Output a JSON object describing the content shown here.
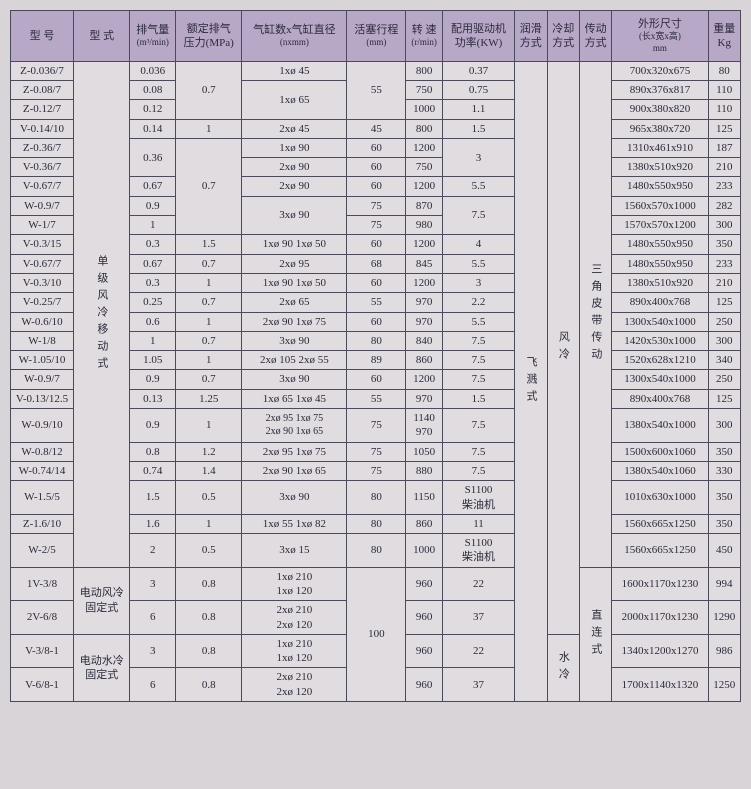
{
  "headers": {
    "c0": "型 号",
    "c1": "型 式",
    "c2": "排气量",
    "c2s": "(m³/min)",
    "c3": "额定排气\n压力(MPa)",
    "c4": "气缸数x气缸直径",
    "c4s": "(nxmm)",
    "c5": "活塞行程",
    "c5s": "(mm)",
    "c6": "转 速",
    "c6s": "(r/min)",
    "c7": "配用驱动机\n功率(KW)",
    "c8": "润滑\n方式",
    "c9": "冷却\n方式",
    "c10": "传动\n方式",
    "c11": "外形尺寸",
    "c11s": "(长x宽x高)\nmm",
    "c12": "重量\nKg"
  },
  "vtext": {
    "type1": "单级风冷移动式",
    "type2a": "电动风冷\n固定式",
    "type2b": "电动水冷\n固定式",
    "lube": "飞溅式",
    "cool1": "风冷",
    "cool2": "水冷",
    "drive1": "三角皮带传动",
    "drive2": "直连式"
  },
  "rows": [
    {
      "m": "Z-0.036/7",
      "q": "0.036",
      "p": "0.7",
      "cyl": "1xø 45",
      "st": "55",
      "rpm": "800",
      "kw": "0.37",
      "dim": "700x320x675",
      "kg": "80"
    },
    {
      "m": "Z-0.08/7",
      "q": "0.08",
      "cyl": "1xø 65",
      "rpm": "750",
      "kw": "0.75",
      "dim": "890x376x817",
      "kg": "110"
    },
    {
      "m": "Z-0.12/7",
      "q": "0.12",
      "rpm": "1000",
      "kw": "1.1",
      "dim": "900x380x820",
      "kg": "110"
    },
    {
      "m": "V-0.14/10",
      "q": "0.14",
      "p": "1",
      "cyl": "2xø 45",
      "st": "45",
      "rpm": "800",
      "kw": "1.5",
      "dim": "965x380x720",
      "kg": "125"
    },
    {
      "m": "Z-0.36/7",
      "q": "0.36",
      "p": "0.7",
      "cyl": "1xø 90",
      "st": "60",
      "rpm": "1200",
      "kw": "3",
      "dim": "1310x461x910",
      "kg": "187"
    },
    {
      "m": "V-0.36/7",
      "cyl": "2xø 90",
      "st": "60",
      "rpm": "750",
      "dim": "1380x510x920",
      "kg": "210"
    },
    {
      "m": "V-0.67/7",
      "q": "0.67",
      "cyl": "2xø 90",
      "st": "60",
      "rpm": "1200",
      "kw": "5.5",
      "dim": "1480x550x950",
      "kg": "233"
    },
    {
      "m": "W-0.9/7",
      "q": "0.9",
      "cyl": "3xø 90",
      "st": "75",
      "rpm": "870",
      "kw": "7.5",
      "dim": "1560x570x1000",
      "kg": "282"
    },
    {
      "m": "W-1/7",
      "q": "1",
      "st": "75",
      "rpm": "980",
      "dim": "1570x570x1200",
      "kg": "300"
    },
    {
      "m": "V-0.3/15",
      "q": "0.3",
      "p": "1.5",
      "cyl": "1xø 90 1xø 50",
      "st": "60",
      "rpm": "1200",
      "kw": "4",
      "dim": "1480x550x950",
      "kg": "350"
    },
    {
      "m": "V-0.67/7",
      "q": "0.67",
      "p": "0.7",
      "cyl": "2xø 95",
      "st": "68",
      "rpm": "845",
      "kw": "5.5",
      "dim": "1480x550x950",
      "kg": "233"
    },
    {
      "m": "V-0.3/10",
      "q": "0.3",
      "p": "1",
      "cyl": "1xø 90 1xø 50",
      "st": "60",
      "rpm": "1200",
      "kw": "3",
      "dim": "1380x510x920",
      "kg": "210"
    },
    {
      "m": "V-0.25/7",
      "q": "0.25",
      "p": "0.7",
      "cyl": "2xø 65",
      "st": "55",
      "rpm": "970",
      "kw": "2.2",
      "dim": "890x400x768",
      "kg": "125"
    },
    {
      "m": "W-0.6/10",
      "q": "0.6",
      "p": "1",
      "cyl": "2xø 90 1xø 75",
      "st": "60",
      "rpm": "970",
      "kw": "5.5",
      "dim": "1300x540x1000",
      "kg": "250"
    },
    {
      "m": "W-1/8",
      "q": "1",
      "p": "0.7",
      "cyl": "3xø 90",
      "st": "80",
      "rpm": "840",
      "kw": "7.5",
      "dim": "1420x530x1000",
      "kg": "300"
    },
    {
      "m": "W-1.05/10",
      "q": "1.05",
      "p": "1",
      "cyl": "2xø 105 2xø 55",
      "st": "89",
      "rpm": "860",
      "kw": "7.5",
      "dim": "1520x628x1210",
      "kg": "340"
    },
    {
      "m": "W-0.9/7",
      "q": "0.9",
      "p": "0.7",
      "cyl": "3xø 90",
      "st": "60",
      "rpm": "1200",
      "kw": "7.5",
      "dim": "1300x540x1000",
      "kg": "250"
    },
    {
      "m": "V-0.13/12.5",
      "q": "0.13",
      "p": "1.25",
      "cyl": "1xø 65 1xø 45",
      "st": "55",
      "rpm": "970",
      "kw": "1.5",
      "dim": "890x400x768",
      "kg": "125"
    },
    {
      "m": "W-0.9/10",
      "q": "0.9",
      "p": "1",
      "cyl": "2xø 95 1xø 75\n2xø 90 1xø 65",
      "st": "75",
      "rpm": "1140\n970",
      "kw": "7.5",
      "dim": "1380x540x1000",
      "kg": "300"
    },
    {
      "m": "W-0.8/12",
      "q": "0.8",
      "p": "1.2",
      "cyl": "2xø 95 1xø 75",
      "st": "75",
      "rpm": "1050",
      "kw": "7.5",
      "dim": "1500x600x1060",
      "kg": "350"
    },
    {
      "m": "W-0.74/14",
      "q": "0.74",
      "p": "1.4",
      "cyl": "2xø 90 1xø 65",
      "st": "75",
      "rpm": "880",
      "kw": "7.5",
      "dim": "1380x540x1060",
      "kg": "330"
    },
    {
      "m": "W-1.5/5",
      "q": "1.5",
      "p": "0.5",
      "cyl": "3xø 90",
      "st": "80",
      "rpm": "1150",
      "kw": "S1100\n柴油机",
      "dim": "1010x630x1000",
      "kg": "350"
    },
    {
      "m": "Z-1.6/10",
      "q": "1.6",
      "p": "1",
      "cyl": "1xø 55 1xø 82",
      "st": "80",
      "rpm": "860",
      "kw": "11",
      "dim": "1560x665x1250",
      "kg": "350"
    },
    {
      "m": "W-2/5",
      "q": "2",
      "p": "0.5",
      "cyl": "3xø 15",
      "st": "80",
      "rpm": "1000",
      "kw": "S1100\n柴油机",
      "dim": "1560x665x1250",
      "kg": "450"
    },
    {
      "m": "1V-3/8",
      "q": "3",
      "p": "0.8",
      "cyl": "1xø 210\n1xø 120",
      "st": "100",
      "rpm": "960",
      "kw": "22",
      "dim": "1600x1170x1230",
      "kg": "994"
    },
    {
      "m": "2V-6/8",
      "q": "6",
      "p": "0.8",
      "cyl": "2xø 210\n2xø 120",
      "rpm": "960",
      "kw": "37",
      "dim": "2000x1170x1230",
      "kg": "1290"
    },
    {
      "m": "V-3/8-1",
      "q": "3",
      "p": "0.8",
      "cyl": "1xø 210\n1xø 120",
      "rpm": "960",
      "kw": "22",
      "dim": "1340x1200x1270",
      "kg": "986"
    },
    {
      "m": "V-6/8-1",
      "q": "6",
      "p": "0.8",
      "cyl": "2xø 210\n2xø 120",
      "rpm": "960",
      "kw": "37",
      "dim": "1700x1140x1320",
      "kg": "1250"
    }
  ]
}
